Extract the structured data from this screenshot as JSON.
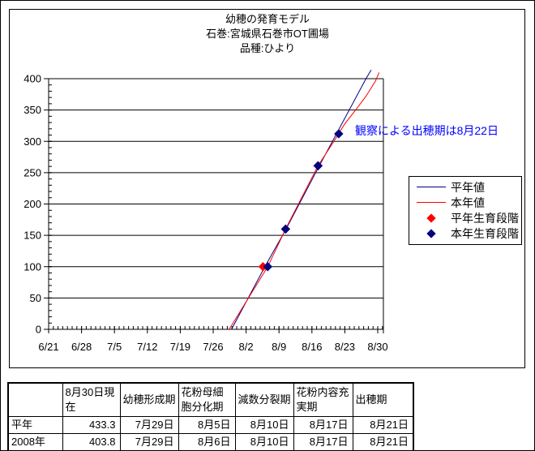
{
  "chart": {
    "title_lines": [
      "幼穂の発育モデル",
      "石巻:宮城県石巻市OT圃場",
      "品種:ひより"
    ],
    "annotation_text": "観察による出穂期は8月22日",
    "annotation_color": "#0000FF",
    "legend_entries": [
      {
        "label": "平年値",
        "type": "line",
        "color": "#000080"
      },
      {
        "label": "本年値",
        "type": "line",
        "color": "#FF0000"
      },
      {
        "label": "平年生育段階",
        "type": "marker",
        "color": "#FF0000"
      },
      {
        "label": "本年生育段階",
        "type": "marker",
        "color": "#000080"
      }
    ]
  },
  "chart_data": {
    "type": "line",
    "title": "幼穂の発育モデル 石巻:宮城県石巻市OT圃場 品種:ひより",
    "x_axis": {
      "tick_labels": [
        "6/21",
        "6/28",
        "7/5",
        "7/12",
        "7/19",
        "7/26",
        "8/2",
        "8/9",
        "8/16",
        "8/23",
        "8/30"
      ],
      "tick_days": [
        0,
        7,
        14,
        21,
        28,
        35,
        42,
        49,
        56,
        63,
        70
      ],
      "minor_step_days": 1,
      "range_days": [
        0,
        71.2
      ]
    },
    "y_axis": {
      "min": 0,
      "max": 400,
      "major_step": 50,
      "minor_step": 10,
      "tick_labels": [
        "0",
        "50",
        "100",
        "150",
        "200",
        "250",
        "300",
        "350",
        "400"
      ]
    },
    "grid": "horizontal",
    "legend_position": "right",
    "series": [
      {
        "name": "平年値",
        "color": "#000080",
        "points_day_value": [
          [
            38.9,
            0
          ],
          [
            46.0,
            100
          ],
          [
            50.5,
            160
          ],
          [
            57.5,
            260
          ],
          [
            67.5,
            400
          ],
          [
            68.6,
            414
          ]
        ]
      },
      {
        "name": "本年値",
        "color": "#FF0000",
        "points_day_value": [
          [
            38.4,
            0
          ],
          [
            46.6,
            100
          ],
          [
            50.4,
            160
          ],
          [
            57.3,
            261
          ],
          [
            60.5,
            298
          ],
          [
            63,
            328
          ],
          [
            65.5,
            352
          ],
          [
            67.5,
            372
          ],
          [
            69.5,
            396
          ],
          [
            70.3,
            410
          ]
        ]
      }
    ],
    "marker_series": [
      {
        "name": "平年生育段階",
        "color": "#FF0000",
        "points_day_value": [
          [
            45.6,
            100
          ],
          [
            50.4,
            160
          ],
          [
            57.3,
            261
          ]
        ]
      },
      {
        "name": "本年生育段階",
        "color": "#000080",
        "points_day_value": [
          [
            46.6,
            100
          ],
          [
            50.4,
            160
          ],
          [
            57.3,
            261
          ],
          [
            61.7,
            312
          ]
        ]
      }
    ],
    "annotation": {
      "text": "観察による出穂期は8月22日",
      "near_day": 62,
      "near_value": 312
    }
  },
  "table": {
    "col_headers": [
      "",
      "8月30日現在",
      "幼穂形成期",
      "花粉母細胞分化期",
      "減数分裂期",
      "花粉内容充実期",
      "出穂期"
    ],
    "rows": [
      {
        "label": "平年",
        "values": [
          "433.3",
          "7月29日",
          "8月5日",
          "8月10日",
          "8月17日",
          "8月21日"
        ]
      },
      {
        "label": "2008年",
        "values": [
          "403.8",
          "7月29日",
          "8月6日",
          "8月10日",
          "8月17日",
          "8月21日"
        ]
      }
    ]
  }
}
